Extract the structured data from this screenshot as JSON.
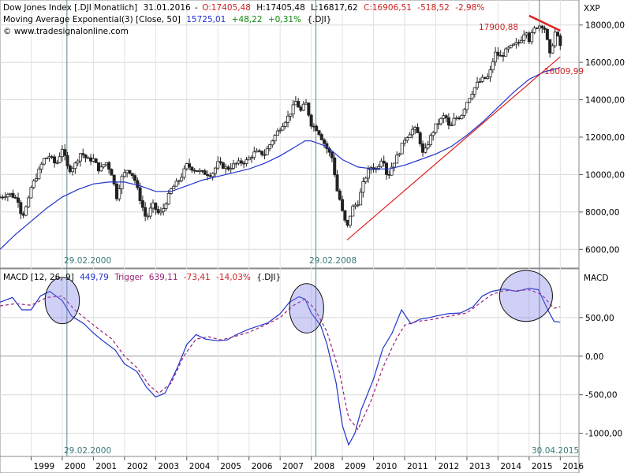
{
  "chart_data": [
    {
      "type": "candlestick",
      "header": {
        "instrument": "Dow Jones Index [.DJI  Monatlich]",
        "date": "31.01.2016",
        "open": "O:17405,48",
        "high": "H:17405,48",
        "low": "L:16817,62",
        "close": "C:16906,51",
        "change": "-518,52",
        "change_pct": "-2,98%",
        "ma_line_prefix": "Moving Average Exponential(3) [Close, 50]",
        "ma_value": "15725,01",
        "ma_change": "+48,22",
        "ma_change_pct": "+0,31%",
        "ma_symbol": "{.DJI}",
        "website": "www.tradesignalonline.com"
      },
      "axis_label": "XXP",
      "y_ticks": [
        "18000,00",
        "16000,00",
        "14000,00",
        "12000,00",
        "10000,00",
        "8000,00",
        "6000,00"
      ],
      "ylim": [
        5000,
        19000
      ],
      "annotations": {
        "resistance_value": "17900,88",
        "support_value": "16009,99",
        "vline_label_1": "29.02.2000",
        "vline_label_2": "29.02.2008"
      },
      "close_path": [
        [
          1998.0,
          8800
        ],
        [
          1998.3,
          9000
        ],
        [
          1998.6,
          8600
        ],
        [
          1998.7,
          7700
        ],
        [
          1998.9,
          8500
        ],
        [
          1999.0,
          9300
        ],
        [
          1999.2,
          10000
        ],
        [
          1999.4,
          10800
        ],
        [
          1999.6,
          11000
        ],
        [
          1999.8,
          10500
        ],
        [
          2000.0,
          11400
        ],
        [
          2000.2,
          10200
        ],
        [
          2000.4,
          10500
        ],
        [
          2000.6,
          11200
        ],
        [
          2000.8,
          10800
        ],
        [
          2001.0,
          10800
        ],
        [
          2001.2,
          10200
        ],
        [
          2001.4,
          10700
        ],
        [
          2001.6,
          10000
        ],
        [
          2001.75,
          8800
        ],
        [
          2001.9,
          9800
        ],
        [
          2002.1,
          10300
        ],
        [
          2002.3,
          9900
        ],
        [
          2002.5,
          8700
        ],
        [
          2002.7,
          7600
        ],
        [
          2002.9,
          8400
        ],
        [
          2003.1,
          7900
        ],
        [
          2003.2,
          8000
        ],
        [
          2003.5,
          9200
        ],
        [
          2003.8,
          9800
        ],
        [
          2004.0,
          10500
        ],
        [
          2004.2,
          10300
        ],
        [
          2004.5,
          10100
        ],
        [
          2004.8,
          10000
        ],
        [
          2005.0,
          10600
        ],
        [
          2005.3,
          10300
        ],
        [
          2005.6,
          10600
        ],
        [
          2005.9,
          10700
        ],
        [
          2006.2,
          11200
        ],
        [
          2006.5,
          11100
        ],
        [
          2006.8,
          12000
        ],
        [
          2007.0,
          12500
        ],
        [
          2007.3,
          13200
        ],
        [
          2007.5,
          13900
        ],
        [
          2007.7,
          13300
        ],
        [
          2007.8,
          14000
        ],
        [
          2008.0,
          12700
        ],
        [
          2008.2,
          12400
        ],
        [
          2008.5,
          11400
        ],
        [
          2008.7,
          10800
        ],
        [
          2008.8,
          9300
        ],
        [
          2008.9,
          8800
        ],
        [
          2009.0,
          8000
        ],
        [
          2009.15,
          7100
        ],
        [
          2009.3,
          8200
        ],
        [
          2009.5,
          8500
        ],
        [
          2009.7,
          9700
        ],
        [
          2009.9,
          10400
        ],
        [
          2010.1,
          10300
        ],
        [
          2010.3,
          11000
        ],
        [
          2010.45,
          9800
        ],
        [
          2010.6,
          10500
        ],
        [
          2010.8,
          11100
        ],
        [
          2011.0,
          11900
        ],
        [
          2011.3,
          12500
        ],
        [
          2011.45,
          12100
        ],
        [
          2011.6,
          11000
        ],
        [
          2011.8,
          11900
        ],
        [
          2012.0,
          12600
        ],
        [
          2012.3,
          13200
        ],
        [
          2012.45,
          12400
        ],
        [
          2012.6,
          13000
        ],
        [
          2012.8,
          13100
        ],
        [
          2013.0,
          13900
        ],
        [
          2013.3,
          14800
        ],
        [
          2013.5,
          15100
        ],
        [
          2013.7,
          15200
        ],
        [
          2013.9,
          16500
        ],
        [
          2014.1,
          16300
        ],
        [
          2014.3,
          16700
        ],
        [
          2014.5,
          16900
        ],
        [
          2014.7,
          17100
        ],
        [
          2014.9,
          17800
        ],
        [
          2015.0,
          17200
        ],
        [
          2015.2,
          17900
        ],
        [
          2015.4,
          18000
        ],
        [
          2015.55,
          17700
        ],
        [
          2015.62,
          16500
        ],
        [
          2015.7,
          16300
        ],
        [
          2015.8,
          17700
        ],
        [
          2015.9,
          17400
        ],
        [
          2016.0,
          16900
        ]
      ],
      "ema_path": [
        [
          1998.0,
          6000
        ],
        [
          1998.5,
          6800
        ],
        [
          1999.0,
          7500
        ],
        [
          1999.5,
          8200
        ],
        [
          2000.0,
          8800
        ],
        [
          2000.5,
          9200
        ],
        [
          2001.0,
          9500
        ],
        [
          2001.5,
          9600
        ],
        [
          2002.0,
          9600
        ],
        [
          2002.5,
          9400
        ],
        [
          2003.0,
          9100
        ],
        [
          2003.5,
          9100
        ],
        [
          2004.0,
          9400
        ],
        [
          2004.5,
          9700
        ],
        [
          2005.0,
          9900
        ],
        [
          2005.5,
          10100
        ],
        [
          2006.0,
          10300
        ],
        [
          2006.5,
          10600
        ],
        [
          2007.0,
          11000
        ],
        [
          2007.5,
          11500
        ],
        [
          2007.8,
          11800
        ],
        [
          2008.0,
          11800
        ],
        [
          2008.5,
          11500
        ],
        [
          2009.0,
          10800
        ],
        [
          2009.5,
          10400
        ],
        [
          2010.0,
          10300
        ],
        [
          2010.5,
          10300
        ],
        [
          2011.0,
          10500
        ],
        [
          2011.5,
          10800
        ],
        [
          2012.0,
          11100
        ],
        [
          2012.5,
          11500
        ],
        [
          2013.0,
          12100
        ],
        [
          2013.5,
          12800
        ],
        [
          2014.0,
          13600
        ],
        [
          2014.5,
          14400
        ],
        [
          2015.0,
          15100
        ],
        [
          2015.5,
          15500
        ],
        [
          2016.0,
          15725
        ]
      ],
      "trendlines": [
        {
          "name": "support",
          "from": [
            2009.15,
            6500
          ],
          "to": [
            2016.0,
            16300
          ],
          "color": "#dd2222"
        },
        {
          "name": "resistance",
          "from": [
            2015.0,
            18500
          ],
          "to": [
            2016.0,
            17700
          ],
          "color": "#dd2222"
        }
      ]
    },
    {
      "type": "line",
      "header": {
        "indicator": "MACD [12, 26, 9]",
        "macd_value": "449,79",
        "trigger_label": "Trigger",
        "trigger_value": "639,11",
        "diff": "-73,41",
        "diff_pct": "-14,03%",
        "symbol": "{.DJI}"
      },
      "axis_label": "MACD",
      "y_ticks": [
        "500,00",
        "0,00",
        "-500,00",
        "-1000,00"
      ],
      "ylim": [
        -1300,
        1050
      ],
      "annotations": {
        "vline_label_1": "29.02.2000",
        "vline_label_2": "30.04.2015"
      },
      "series": [
        {
          "name": "MACD",
          "color": "#2233cc",
          "points": [
            [
              1998.0,
              700
            ],
            [
              1998.4,
              760
            ],
            [
              1998.7,
              600
            ],
            [
              1999.0,
              600
            ],
            [
              1999.3,
              780
            ],
            [
              1999.6,
              840
            ],
            [
              2000.0,
              720
            ],
            [
              2000.3,
              520
            ],
            [
              2000.7,
              420
            ],
            [
              2001.0,
              300
            ],
            [
              2001.3,
              200
            ],
            [
              2001.7,
              80
            ],
            [
              2002.0,
              -100
            ],
            [
              2002.4,
              -200
            ],
            [
              2002.7,
              -400
            ],
            [
              2003.0,
              -530
            ],
            [
              2003.3,
              -480
            ],
            [
              2003.7,
              -150
            ],
            [
              2004.0,
              150
            ],
            [
              2004.3,
              280
            ],
            [
              2004.6,
              220
            ],
            [
              2005.0,
              200
            ],
            [
              2005.3,
              210
            ],
            [
              2005.6,
              280
            ],
            [
              2006.0,
              350
            ],
            [
              2006.3,
              390
            ],
            [
              2006.6,
              430
            ],
            [
              2007.0,
              550
            ],
            [
              2007.3,
              700
            ],
            [
              2007.6,
              770
            ],
            [
              2007.8,
              740
            ],
            [
              2008.0,
              560
            ],
            [
              2008.3,
              400
            ],
            [
              2008.5,
              160
            ],
            [
              2008.8,
              -350
            ],
            [
              2009.0,
              -900
            ],
            [
              2009.2,
              -1150
            ],
            [
              2009.4,
              -1000
            ],
            [
              2009.6,
              -700
            ],
            [
              2010.0,
              -300
            ],
            [
              2010.3,
              100
            ],
            [
              2010.6,
              300
            ],
            [
              2010.9,
              600
            ],
            [
              2011.2,
              420
            ],
            [
              2011.5,
              480
            ],
            [
              2011.8,
              500
            ],
            [
              2012.0,
              520
            ],
            [
              2012.4,
              550
            ],
            [
              2012.8,
              560
            ],
            [
              2013.2,
              640
            ],
            [
              2013.5,
              780
            ],
            [
              2013.8,
              840
            ],
            [
              2014.2,
              870
            ],
            [
              2014.6,
              840
            ],
            [
              2015.0,
              880
            ],
            [
              2015.3,
              860
            ],
            [
              2015.6,
              600
            ],
            [
              2015.8,
              450
            ],
            [
              2016.0,
              440
            ]
          ]
        },
        {
          "name": "Trigger",
          "color": "#992277",
          "dashed": true,
          "points": [
            [
              1998.0,
              650
            ],
            [
              1998.5,
              680
            ],
            [
              1999.0,
              660
            ],
            [
              1999.5,
              760
            ],
            [
              2000.0,
              780
            ],
            [
              2000.4,
              600
            ],
            [
              2000.8,
              470
            ],
            [
              2001.2,
              340
            ],
            [
              2001.6,
              220
            ],
            [
              2002.0,
              0
            ],
            [
              2002.4,
              -150
            ],
            [
              2002.8,
              -380
            ],
            [
              2003.1,
              -480
            ],
            [
              2003.5,
              -350
            ],
            [
              2003.9,
              0
            ],
            [
              2004.3,
              220
            ],
            [
              2004.7,
              250
            ],
            [
              2005.1,
              210
            ],
            [
              2005.5,
              250
            ],
            [
              2006.0,
              310
            ],
            [
              2006.5,
              400
            ],
            [
              2007.0,
              500
            ],
            [
              2007.4,
              650
            ],
            [
              2007.8,
              740
            ],
            [
              2008.1,
              620
            ],
            [
              2008.5,
              320
            ],
            [
              2008.9,
              -200
            ],
            [
              2009.2,
              -800
            ],
            [
              2009.5,
              -950
            ],
            [
              2009.9,
              -600
            ],
            [
              2010.3,
              -150
            ],
            [
              2010.7,
              200
            ],
            [
              2011.0,
              400
            ],
            [
              2011.4,
              450
            ],
            [
              2011.8,
              470
            ],
            [
              2012.2,
              500
            ],
            [
              2012.6,
              530
            ],
            [
              2013.0,
              560
            ],
            [
              2013.4,
              680
            ],
            [
              2013.8,
              800
            ],
            [
              2014.2,
              850
            ],
            [
              2014.6,
              850
            ],
            [
              2015.0,
              860
            ],
            [
              2015.4,
              800
            ],
            [
              2015.8,
              620
            ],
            [
              2016.0,
              640
            ]
          ]
        }
      ],
      "highlights": [
        {
          "name": "macd-circle-2000",
          "center": [
            2000.0,
            720
          ],
          "rx_years": 0.55,
          "ry": 300
        },
        {
          "name": "macd-circle-2008",
          "center": [
            2007.85,
            620
          ],
          "rx_years": 0.55,
          "ry": 320
        },
        {
          "name": "macd-circle-2015",
          "center": [
            2014.9,
            780
          ],
          "rx_years": 0.85,
          "ry": 330
        }
      ]
    }
  ],
  "x_axis": {
    "labels": [
      "1999",
      "2000",
      "2001",
      "2002",
      "2003",
      "2004",
      "2005",
      "2006",
      "2007",
      "2008",
      "2009",
      "2010",
      "2011",
      "2012",
      "2013",
      "2014",
      "2015",
      "2016"
    ],
    "range": [
      1998.0,
      2016.6
    ]
  },
  "vlines": [
    2000.15,
    2008.15,
    2015.33
  ]
}
